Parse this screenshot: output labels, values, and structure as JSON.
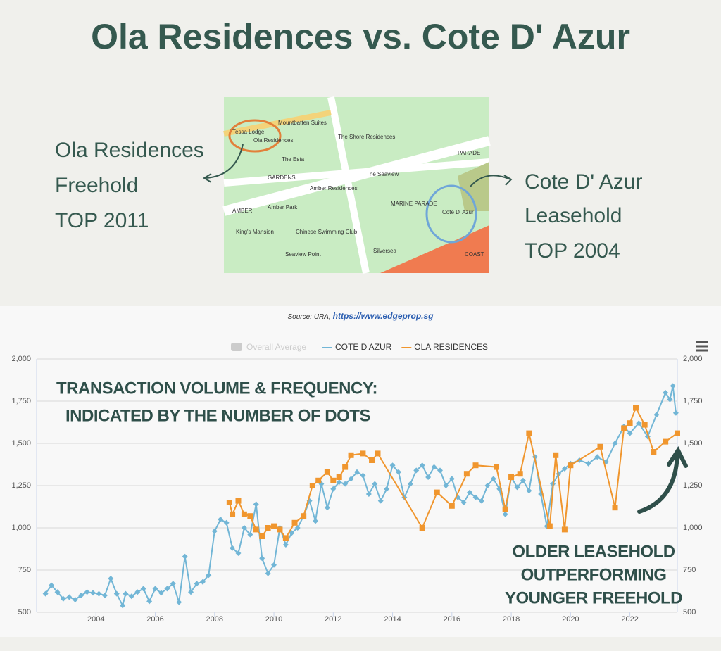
{
  "header": {
    "title": "Ola Residences vs. Cote D' Azur"
  },
  "left_caption": [
    "Ola Residences",
    "Freehold",
    "TOP 2011"
  ],
  "right_caption": [
    "Cote D' Azur",
    "Leasehold",
    "TOP 2004"
  ],
  "map_labels": [
    "Tessa Lodge",
    "Ola Residences",
    "Mountbatten Suites",
    "The Esta",
    "Amber Residences",
    "The Seaview",
    "The Shore Residences",
    "AMBER",
    "GARDENS",
    "MARINE PARADE",
    "Cote D' Azur",
    "Amber Park",
    "King's Mansion",
    "Silversea",
    "COAST",
    "Chinese Swimming Club",
    "Seaview Point",
    "PARADE"
  ],
  "chart_data": {
    "type": "line",
    "source": "Source: URA,",
    "source_link": "https://www.edgeprop.sg",
    "annotations": [
      "TRANSACTION VOLUME & FREQUENCY:",
      "INDICATED BY THE NUMBER OF DOTS",
      "OLDER LEASEHOLD",
      "OUTPERFORMING",
      "YOUNGER FREEHOLD"
    ],
    "legend_hidden": "Overall Average",
    "xlim": [
      2002,
      2023.6
    ],
    "xticks": [
      2004,
      2006,
      2008,
      2010,
      2012,
      2014,
      2016,
      2018,
      2020,
      2022
    ],
    "ylim": [
      500,
      2000
    ],
    "yticks": [
      500,
      750,
      {
        "value": 1000,
        "label": "1,000"
      },
      {
        "value": 1250,
        "label": "1,250"
      },
      {
        "value": 1500,
        "label": "1,500"
      },
      {
        "value": 1750,
        "label": "1,750"
      },
      {
        "value": 2000,
        "label": "2,000"
      }
    ],
    "grid": true,
    "series": [
      {
        "name": "COTE D'AZUR",
        "color": "#72b6d6",
        "marker": "diamond",
        "x": [
          2002.3,
          2002.5,
          2002.7,
          2002.9,
          2003.1,
          2003.3,
          2003.5,
          2003.7,
          2003.9,
          2004.1,
          2004.3,
          2004.5,
          2004.7,
          2004.9,
          2005.0,
          2005.2,
          2005.4,
          2005.6,
          2005.8,
          2006.0,
          2006.2,
          2006.4,
          2006.6,
          2006.8,
          2007.0,
          2007.2,
          2007.4,
          2007.6,
          2007.8,
          2008.0,
          2008.2,
          2008.4,
          2008.6,
          2008.8,
          2009.0,
          2009.2,
          2009.4,
          2009.6,
          2009.8,
          2010.0,
          2010.2,
          2010.4,
          2010.6,
          2010.8,
          2011.0,
          2011.2,
          2011.4,
          2011.6,
          2011.8,
          2012.0,
          2012.2,
          2012.4,
          2012.6,
          2012.8,
          2013.0,
          2013.2,
          2013.4,
          2013.6,
          2013.8,
          2014.0,
          2014.2,
          2014.4,
          2014.6,
          2014.8,
          2015.0,
          2015.2,
          2015.4,
          2015.6,
          2015.8,
          2016.0,
          2016.2,
          2016.4,
          2016.6,
          2016.8,
          2017.0,
          2017.2,
          2017.4,
          2017.6,
          2017.8,
          2018.0,
          2018.2,
          2018.4,
          2018.6,
          2018.8,
          2019.0,
          2019.2,
          2019.4,
          2019.6,
          2019.8,
          2020.0,
          2020.3,
          2020.6,
          2020.9,
          2021.2,
          2021.5,
          2021.8,
          2022.0,
          2022.3,
          2022.6,
          2022.9,
          2023.2,
          2023.35,
          2023.45,
          2023.55
        ],
        "values": [
          610,
          660,
          620,
          580,
          590,
          575,
          600,
          620,
          615,
          610,
          600,
          700,
          610,
          540,
          610,
          595,
          620,
          640,
          565,
          640,
          615,
          640,
          670,
          560,
          830,
          620,
          670,
          680,
          720,
          980,
          1050,
          1030,
          880,
          850,
          1000,
          960,
          1140,
          820,
          730,
          780,
          1000,
          900,
          970,
          1000,
          1070,
          1160,
          1040,
          1260,
          1120,
          1230,
          1270,
          1260,
          1290,
          1330,
          1310,
          1200,
          1260,
          1160,
          1230,
          1370,
          1330,
          1180,
          1260,
          1340,
          1370,
          1300,
          1360,
          1340,
          1250,
          1290,
          1180,
          1150,
          1210,
          1180,
          1160,
          1250,
          1290,
          1230,
          1080,
          1300,
          1240,
          1280,
          1220,
          1420,
          1200,
          1010,
          1260,
          1320,
          1350,
          1380,
          1400,
          1380,
          1420,
          1390,
          1500,
          1600,
          1560,
          1620,
          1540,
          1670,
          1800,
          1760,
          1840,
          1680
        ]
      },
      {
        "name": "OLA RESIDENCES",
        "color": "#f0962e",
        "marker": "square",
        "x": [
          2008.5,
          2008.6,
          2008.8,
          2009.0,
          2009.2,
          2009.4,
          2009.6,
          2009.8,
          2010.0,
          2010.2,
          2010.4,
          2010.7,
          2011.0,
          2011.3,
          2011.5,
          2011.8,
          2012.0,
          2012.2,
          2012.4,
          2012.6,
          2013.0,
          2013.3,
          2013.5,
          2015.0,
          2015.5,
          2016.0,
          2016.5,
          2016.8,
          2017.5,
          2017.8,
          2018.0,
          2018.3,
          2018.6,
          2019.3,
          2019.5,
          2019.8,
          2020.0,
          2021.0,
          2021.5,
          2021.8,
          2022.0,
          2022.2,
          2022.5,
          2022.8,
          2023.2,
          2023.6
        ],
        "values": [
          1150,
          1080,
          1160,
          1080,
          1070,
          990,
          950,
          1000,
          1010,
          990,
          940,
          1030,
          1070,
          1250,
          1280,
          1330,
          1280,
          1300,
          1360,
          1430,
          1440,
          1400,
          1440,
          1000,
          1210,
          1130,
          1320,
          1370,
          1360,
          1110,
          1300,
          1320,
          1560,
          1010,
          1430,
          990,
          1370,
          1480,
          1120,
          1590,
          1620,
          1710,
          1610,
          1450,
          1510,
          1560
        ]
      }
    ]
  }
}
